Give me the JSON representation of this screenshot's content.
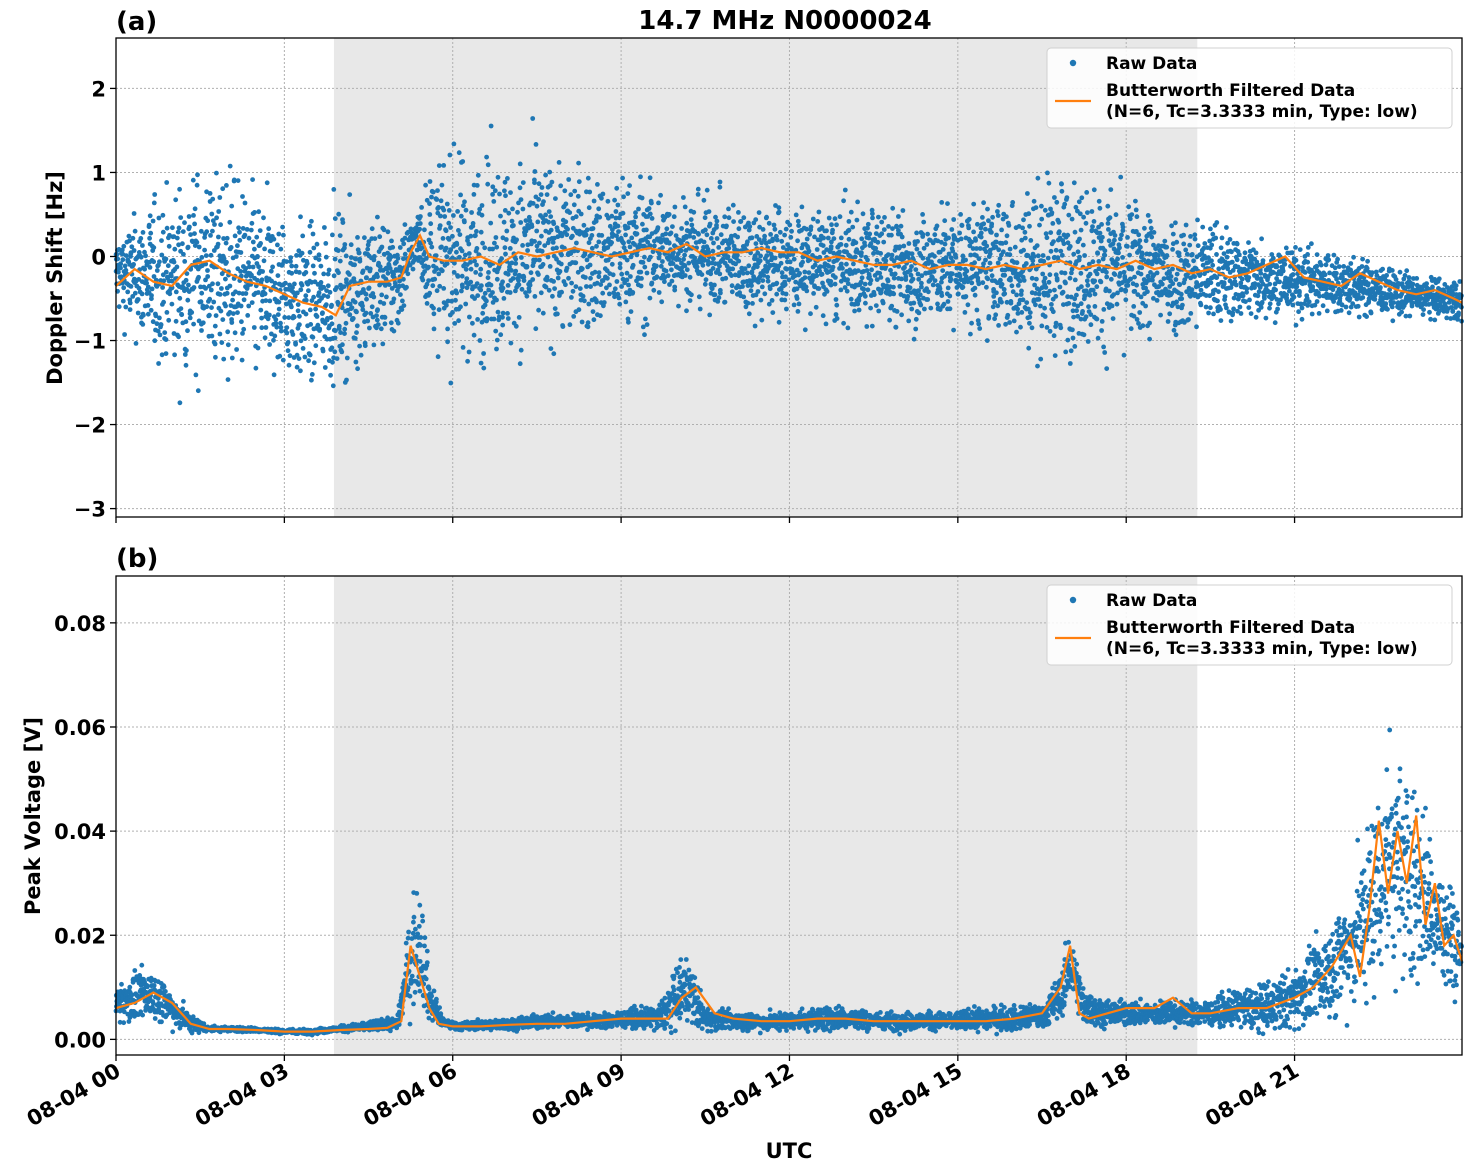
{
  "figure": {
    "title": "14.7 MHz N0000024",
    "xlabel": "UTC",
    "colors": {
      "raw": "#1f77b4",
      "filtered": "#ff7f0e",
      "shade": "#e8e8e8",
      "grid": "#b0b0b0"
    }
  },
  "chart_data": [
    {
      "type": "scatter",
      "panel_label": "(a)",
      "ylabel": "Doppler Shift [Hz]",
      "xlim": [
        "08-04 00:00",
        "08-04 23:59"
      ],
      "ylim": [
        -3.1,
        2.6
      ],
      "yticks": [
        -3,
        -2,
        -1,
        0,
        1,
        2
      ],
      "ytick_labels": [
        "−3",
        "−2",
        "−1",
        "0",
        "1",
        "2"
      ],
      "xticks": [
        "08-04 00",
        "08-04 03",
        "08-04 06",
        "08-04 09",
        "08-04 12",
        "08-04 15",
        "08-04 18",
        "08-04 21"
      ],
      "shaded_span": [
        "08-04 03:53",
        "08-04 19:16"
      ],
      "grid": true,
      "legend_placement": "top-right",
      "series": [
        {
          "name": "Raw Data",
          "style": "points",
          "times": [
            "00:00",
            "00:30",
            "01:00",
            "01:30",
            "02:00",
            "02:30",
            "03:00",
            "03:30",
            "03:50",
            "04:30",
            "05:00",
            "05:20",
            "05:40",
            "06:00",
            "06:30",
            "07:00",
            "07:30",
            "08:00",
            "08:30",
            "09:00",
            "09:30",
            "10:00",
            "10:30",
            "11:00",
            "11:30",
            "12:00",
            "12:30",
            "13:00",
            "13:30",
            "14:00",
            "14:30",
            "15:00",
            "15:30",
            "16:00",
            "16:30",
            "17:00",
            "17:30",
            "18:00",
            "18:30",
            "19:00",
            "19:30",
            "20:00",
            "20:30",
            "21:00",
            "21:30",
            "22:00",
            "22:30",
            "23:00",
            "23:30",
            "23:59"
          ],
          "center": [
            -0.2,
            -0.25,
            -0.3,
            -0.15,
            -0.2,
            -0.35,
            -0.5,
            -0.6,
            -0.5,
            -0.35,
            -0.3,
            0.2,
            0.05,
            0,
            -0.05,
            0,
            0.05,
            0.1,
            0,
            0.05,
            0.05,
            0.1,
            0.05,
            0,
            -0.05,
            -0.05,
            -0.1,
            -0.1,
            -0.1,
            -0.15,
            -0.15,
            -0.1,
            -0.1,
            -0.15,
            -0.1,
            -0.1,
            -0.1,
            -0.15,
            -0.2,
            -0.2,
            -0.2,
            -0.25,
            -0.25,
            -0.3,
            -0.3,
            -0.35,
            -0.4,
            -0.45,
            -0.5,
            -0.55
          ],
          "spread": [
            0.4,
            0.7,
            0.9,
            1.0,
            1.0,
            0.9,
            0.8,
            0.8,
            0.8,
            0.7,
            0.6,
            0.25,
            0.9,
            1.0,
            1.0,
            0.95,
            0.95,
            0.85,
            0.8,
            0.75,
            0.7,
            0.55,
            0.55,
            0.55,
            0.6,
            0.55,
            0.55,
            0.6,
            0.6,
            0.6,
            0.6,
            0.6,
            0.65,
            0.75,
            0.85,
            0.9,
            0.8,
            0.7,
            0.65,
            0.6,
            0.55,
            0.45,
            0.4,
            0.35,
            0.35,
            0.3,
            0.25,
            0.22,
            0.2,
            0.2
          ]
        },
        {
          "name": "Butterworth Filtered Data\n(N=6, Tc=3.3333 min, Type: low)",
          "style": "line",
          "times": [
            "00:00",
            "00:20",
            "00:40",
            "01:00",
            "01:20",
            "01:40",
            "02:00",
            "02:20",
            "02:40",
            "03:00",
            "03:20",
            "03:40",
            "03:55",
            "04:10",
            "04:30",
            "04:50",
            "05:05",
            "05:15",
            "05:25",
            "05:35",
            "05:50",
            "06:10",
            "06:30",
            "06:50",
            "07:10",
            "07:30",
            "07:50",
            "08:10",
            "08:30",
            "08:50",
            "09:10",
            "09:30",
            "09:50",
            "10:10",
            "10:30",
            "10:50",
            "11:10",
            "11:30",
            "11:50",
            "12:10",
            "12:30",
            "12:50",
            "13:10",
            "13:30",
            "13:50",
            "14:10",
            "14:30",
            "14:50",
            "15:10",
            "15:30",
            "15:50",
            "16:10",
            "16:30",
            "16:50",
            "17:10",
            "17:30",
            "17:50",
            "18:10",
            "18:30",
            "18:50",
            "19:10",
            "19:30",
            "19:50",
            "20:10",
            "20:30",
            "20:50",
            "21:10",
            "21:30",
            "21:50",
            "22:10",
            "22:30",
            "22:50",
            "23:10",
            "23:30",
            "23:50",
            "23:59"
          ],
          "values": [
            -0.35,
            -0.15,
            -0.3,
            -0.35,
            -0.1,
            -0.05,
            -0.2,
            -0.3,
            -0.35,
            -0.45,
            -0.55,
            -0.6,
            -0.7,
            -0.35,
            -0.3,
            -0.3,
            -0.25,
            0.05,
            0.25,
            0.0,
            -0.05,
            -0.05,
            0.0,
            -0.1,
            0.05,
            0.0,
            0.05,
            0.1,
            0.05,
            0.0,
            0.05,
            0.1,
            0.05,
            0.15,
            0.0,
            0.05,
            0.05,
            0.1,
            0.05,
            0.05,
            -0.05,
            0.0,
            -0.05,
            -0.1,
            -0.1,
            -0.05,
            -0.15,
            -0.1,
            -0.1,
            -0.15,
            -0.1,
            -0.15,
            -0.1,
            -0.05,
            -0.15,
            -0.1,
            -0.15,
            -0.05,
            -0.15,
            -0.1,
            -0.2,
            -0.15,
            -0.25,
            -0.2,
            -0.1,
            0.0,
            -0.25,
            -0.3,
            -0.35,
            -0.2,
            -0.3,
            -0.4,
            -0.45,
            -0.4,
            -0.5,
            -0.55
          ]
        }
      ]
    },
    {
      "type": "scatter",
      "panel_label": "(b)",
      "ylabel": "Peak Voltage [V]",
      "xlim": [
        "08-04 00:00",
        "08-04 23:59"
      ],
      "ylim": [
        -0.003,
        0.089
      ],
      "yticks": [
        0.0,
        0.02,
        0.04,
        0.06,
        0.08
      ],
      "ytick_labels": [
        "0.00",
        "0.02",
        "0.04",
        "0.06",
        "0.08"
      ],
      "xticks": [
        "08-04 00",
        "08-04 03",
        "08-04 06",
        "08-04 09",
        "08-04 12",
        "08-04 15",
        "08-04 18",
        "08-04 21"
      ],
      "xtick_labels": [
        "08-04 00",
        "08-04 03",
        "08-04 06",
        "08-04 09",
        "08-04 12",
        "08-04 15",
        "08-04 18",
        "08-04 21"
      ],
      "shaded_span": [
        "08-04 03:53",
        "08-04 19:16"
      ],
      "grid": true,
      "legend_placement": "top-right",
      "series": [
        {
          "name": "Raw Data",
          "style": "points",
          "times": [
            "00:00",
            "00:20",
            "00:40",
            "01:00",
            "01:20",
            "01:40",
            "02:00",
            "02:30",
            "03:00",
            "03:30",
            "04:00",
            "04:30",
            "05:00",
            "05:15",
            "05:25",
            "05:35",
            "05:50",
            "06:10",
            "06:40",
            "07:10",
            "07:40",
            "08:10",
            "08:40",
            "09:10",
            "09:40",
            "10:00",
            "10:10",
            "10:30",
            "11:00",
            "11:30",
            "12:00",
            "12:30",
            "13:00",
            "13:30",
            "14:00",
            "14:30",
            "15:00",
            "15:30",
            "16:00",
            "16:30",
            "16:50",
            "17:00",
            "17:15",
            "17:40",
            "18:00",
            "18:30",
            "19:00",
            "19:30",
            "20:00",
            "20:30",
            "21:00",
            "21:30",
            "22:00",
            "22:20",
            "22:40",
            "23:00",
            "23:20",
            "23:40",
            "23:59"
          ],
          "center": [
            0.007,
            0.008,
            0.009,
            0.006,
            0.003,
            0.002,
            0.002,
            0.0018,
            0.0015,
            0.0015,
            0.002,
            0.0025,
            0.003,
            0.015,
            0.02,
            0.008,
            0.003,
            0.0025,
            0.0028,
            0.003,
            0.0035,
            0.0035,
            0.0035,
            0.004,
            0.004,
            0.008,
            0.01,
            0.004,
            0.0035,
            0.0035,
            0.0035,
            0.004,
            0.004,
            0.0035,
            0.0035,
            0.0035,
            0.0035,
            0.004,
            0.004,
            0.0045,
            0.008,
            0.015,
            0.006,
            0.005,
            0.005,
            0.005,
            0.005,
            0.005,
            0.006,
            0.006,
            0.008,
            0.012,
            0.018,
            0.025,
            0.035,
            0.032,
            0.028,
            0.02,
            0.018
          ],
          "spread": [
            0.003,
            0.004,
            0.004,
            0.003,
            0.0015,
            0.0005,
            0.0004,
            0.0004,
            0.0004,
            0.0004,
            0.0005,
            0.0008,
            0.001,
            0.008,
            0.01,
            0.004,
            0.0008,
            0.0007,
            0.0008,
            0.001,
            0.0012,
            0.0012,
            0.0012,
            0.0015,
            0.002,
            0.005,
            0.006,
            0.002,
            0.0015,
            0.0015,
            0.0015,
            0.002,
            0.002,
            0.0015,
            0.0015,
            0.0015,
            0.0015,
            0.002,
            0.002,
            0.002,
            0.004,
            0.005,
            0.003,
            0.002,
            0.002,
            0.002,
            0.002,
            0.002,
            0.003,
            0.004,
            0.005,
            0.007,
            0.01,
            0.015,
            0.02,
            0.018,
            0.014,
            0.01,
            0.008
          ]
        },
        {
          "name": "Butterworth Filtered Data\n(N=6, Tc=3.3333 min, Type: low)",
          "style": "line",
          "times": [
            "00:00",
            "00:20",
            "00:40",
            "01:00",
            "01:20",
            "01:40",
            "02:00",
            "02:30",
            "03:00",
            "03:30",
            "04:00",
            "04:30",
            "04:50",
            "05:05",
            "05:15",
            "05:25",
            "05:35",
            "05:45",
            "06:00",
            "06:30",
            "07:00",
            "07:30",
            "08:00",
            "08:30",
            "09:00",
            "09:30",
            "09:50",
            "10:05",
            "10:20",
            "10:40",
            "11:00",
            "11:30",
            "12:00",
            "12:30",
            "13:00",
            "13:30",
            "14:00",
            "14:30",
            "15:00",
            "15:30",
            "16:00",
            "16:30",
            "16:50",
            "17:00",
            "17:10",
            "17:20",
            "17:40",
            "18:00",
            "18:30",
            "18:50",
            "19:10",
            "19:30",
            "20:00",
            "20:30",
            "21:00",
            "21:20",
            "21:40",
            "22:00",
            "22:10",
            "22:20",
            "22:30",
            "22:40",
            "22:50",
            "23:00",
            "23:10",
            "23:20",
            "23:30",
            "23:40",
            "23:50",
            "23:59"
          ],
          "values": [
            0.006,
            0.007,
            0.009,
            0.007,
            0.003,
            0.002,
            0.002,
            0.0018,
            0.0015,
            0.0015,
            0.0018,
            0.002,
            0.0022,
            0.0035,
            0.018,
            0.012,
            0.006,
            0.003,
            0.0025,
            0.0025,
            0.0028,
            0.003,
            0.003,
            0.0035,
            0.004,
            0.004,
            0.004,
            0.008,
            0.01,
            0.005,
            0.004,
            0.0035,
            0.0035,
            0.004,
            0.004,
            0.0035,
            0.0035,
            0.0035,
            0.0035,
            0.0035,
            0.004,
            0.005,
            0.01,
            0.018,
            0.005,
            0.004,
            0.005,
            0.006,
            0.006,
            0.008,
            0.005,
            0.005,
            0.006,
            0.006,
            0.008,
            0.01,
            0.014,
            0.02,
            0.012,
            0.025,
            0.042,
            0.028,
            0.04,
            0.03,
            0.043,
            0.022,
            0.03,
            0.018,
            0.02,
            0.015
          ]
        }
      ]
    }
  ]
}
